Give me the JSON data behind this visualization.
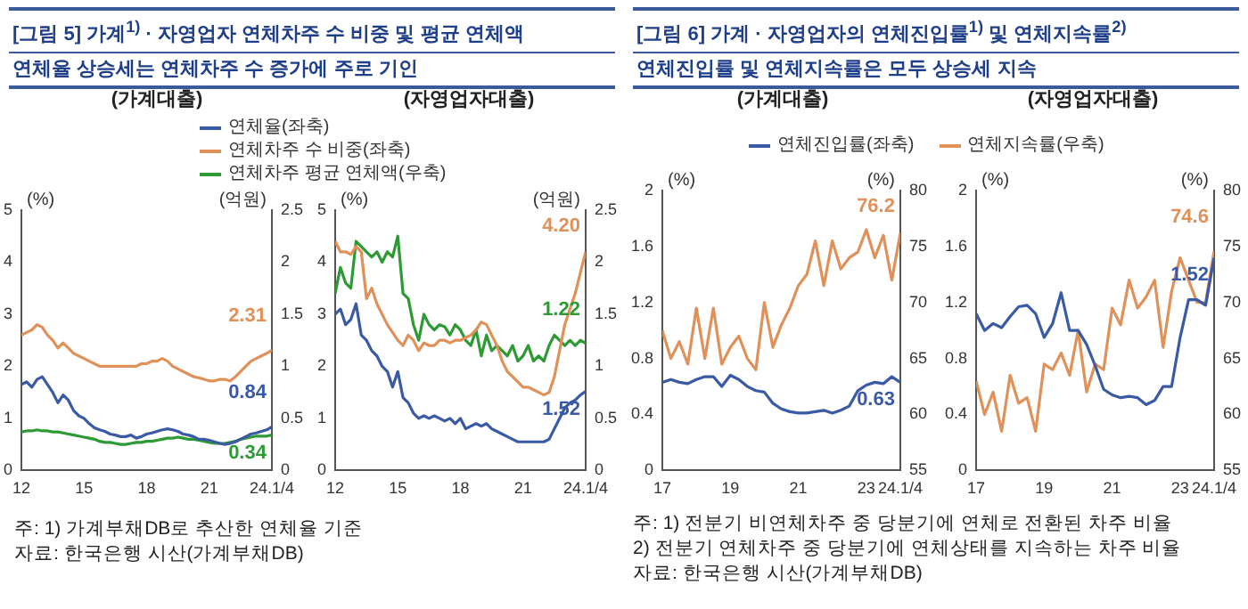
{
  "chart_data": [
    {
      "type": "line",
      "title": "[그림 5] 가계$^{1)}$ · 자영업자 연체차주 수 비중 및 평균 연체액",
      "subtitle": "연체율 상승세는 연체차주 수 증가에 주로 기인",
      "annotations": [
        "(가계대출)",
        "주: 1) 가계부채DB로 추산한 연체율 기준",
        "자료: 한국은행 시산(가계부채DB)"
      ],
      "ylabel": "(%)",
      "y2label": "(억원)",
      "legend": "top",
      "x": [
        2012,
        2012.25,
        2012.5,
        2012.75,
        2013,
        2013.25,
        2013.5,
        2013.75,
        2014,
        2014.25,
        2014.5,
        2014.75,
        2015,
        2015.25,
        2015.5,
        2015.75,
        2016,
        2016.25,
        2016.5,
        2016.75,
        2017,
        2017.25,
        2017.5,
        2017.75,
        2018,
        2018.25,
        2018.5,
        2018.75,
        2019,
        2019.25,
        2019.5,
        2019.75,
        2020,
        2020.25,
        2020.5,
        2020.75,
        2021,
        2021.25,
        2021.5,
        2021.75,
        2022,
        2022.25,
        2022.5,
        2022.75,
        2023,
        2023.25,
        2023.5,
        2023.75,
        2024
      ],
      "xlim": [
        2012,
        2024
      ],
      "xticks": [
        {
          "value": 2012,
          "label": "12"
        },
        {
          "value": 2015,
          "label": "15"
        },
        {
          "value": 2018,
          "label": "18"
        },
        {
          "value": 2021,
          "label": "21"
        },
        {
          "value": 2024,
          "label": "24.1/4"
        }
      ],
      "ylim": [
        0,
        5
      ],
      "yticks": [
        0,
        1,
        2,
        3,
        4,
        5
      ],
      "y2lim": [
        0,
        2.5
      ],
      "y2ticks": [
        0,
        0.5,
        1,
        1.5,
        2,
        2.5
      ],
      "series": [
        {
          "name": "연체율(좌축)",
          "color": "#3b5aa6",
          "values": [
            1.65,
            1.7,
            1.6,
            1.75,
            1.8,
            1.65,
            1.5,
            1.3,
            1.45,
            1.35,
            1.15,
            1.05,
            1.0,
            0.9,
            0.82,
            0.78,
            0.75,
            0.7,
            0.68,
            0.65,
            0.65,
            0.68,
            0.62,
            0.65,
            0.7,
            0.72,
            0.75,
            0.78,
            0.8,
            0.78,
            0.75,
            0.7,
            0.68,
            0.65,
            0.6,
            0.6,
            0.58,
            0.55,
            0.52,
            0.5,
            0.52,
            0.55,
            0.6,
            0.65,
            0.7,
            0.72,
            0.75,
            0.78,
            0.84
          ],
          "value_labels": [
            null,
            null,
            null,
            null,
            null,
            null,
            null,
            null,
            null,
            null,
            null,
            null,
            null,
            null,
            null,
            null,
            null,
            null,
            null,
            null,
            null,
            null,
            null,
            null,
            null,
            null,
            null,
            null,
            null,
            null,
            null,
            null,
            null,
            null,
            null,
            null,
            null,
            null,
            null,
            null,
            null,
            null,
            null,
            null,
            null,
            null,
            null,
            null,
            "0.84"
          ]
        },
        {
          "name": "연체차주 수 비중(좌축)",
          "color": "#e0915a",
          "values": [
            2.6,
            2.65,
            2.7,
            2.8,
            2.75,
            2.6,
            2.5,
            2.35,
            2.45,
            2.35,
            2.25,
            2.2,
            2.15,
            2.1,
            2.05,
            2.0,
            2.0,
            2.0,
            2.0,
            2.0,
            2.0,
            2.0,
            2.0,
            2.05,
            2.05,
            2.1,
            2.1,
            2.15,
            2.1,
            2.0,
            1.95,
            1.9,
            1.85,
            1.8,
            1.78,
            1.75,
            1.72,
            1.72,
            1.75,
            1.75,
            1.72,
            1.8,
            1.9,
            2.0,
            2.1,
            2.15,
            2.2,
            2.25,
            2.31
          ],
          "value_labels": [
            null,
            null,
            null,
            null,
            null,
            null,
            null,
            null,
            null,
            null,
            null,
            null,
            null,
            null,
            null,
            null,
            null,
            null,
            null,
            null,
            null,
            null,
            null,
            null,
            null,
            null,
            null,
            null,
            null,
            null,
            null,
            null,
            null,
            null,
            null,
            null,
            null,
            null,
            null,
            null,
            null,
            null,
            null,
            null,
            null,
            null,
            null,
            null,
            "2.31"
          ]
        },
        {
          "name": "연체차주 평균 연체액(우축)",
          "color": "#2e9a35",
          "axis": "y2",
          "values": [
            0.37,
            0.38,
            0.38,
            0.39,
            0.38,
            0.38,
            0.37,
            0.37,
            0.36,
            0.35,
            0.34,
            0.33,
            0.32,
            0.31,
            0.3,
            0.28,
            0.27,
            0.27,
            0.26,
            0.25,
            0.25,
            0.26,
            0.27,
            0.27,
            0.28,
            0.28,
            0.29,
            0.3,
            0.31,
            0.31,
            0.32,
            0.31,
            0.3,
            0.3,
            0.29,
            0.28,
            0.27,
            0.26,
            0.26,
            0.26,
            0.27,
            0.28,
            0.3,
            0.31,
            0.32,
            0.33,
            0.33,
            0.33,
            0.34
          ],
          "value_labels": [
            null,
            null,
            null,
            null,
            null,
            null,
            null,
            null,
            null,
            null,
            null,
            null,
            null,
            null,
            null,
            null,
            null,
            null,
            null,
            null,
            null,
            null,
            null,
            null,
            null,
            null,
            null,
            null,
            null,
            null,
            null,
            null,
            null,
            null,
            null,
            null,
            null,
            null,
            null,
            null,
            null,
            null,
            null,
            null,
            null,
            null,
            null,
            null,
            "0.34"
          ]
        }
      ]
    },
    {
      "type": "line",
      "annotations": [
        "(자영업자대출)"
      ],
      "ylabel": "(%)",
      "y2label": "(억원)",
      "x": [
        2012,
        2012.25,
        2012.5,
        2012.75,
        2013,
        2013.25,
        2013.5,
        2013.75,
        2014,
        2014.25,
        2014.5,
        2014.75,
        2015,
        2015.25,
        2015.5,
        2015.75,
        2016,
        2016.25,
        2016.5,
        2016.75,
        2017,
        2017.25,
        2017.5,
        2017.75,
        2018,
        2018.25,
        2018.5,
        2018.75,
        2019,
        2019.25,
        2019.5,
        2019.75,
        2020,
        2020.25,
        2020.5,
        2020.75,
        2021,
        2021.25,
        2021.5,
        2021.75,
        2022,
        2022.25,
        2022.5,
        2022.75,
        2023,
        2023.25,
        2023.5,
        2023.75,
        2024
      ],
      "xlim": [
        2012,
        2024
      ],
      "xticks": [
        {
          "value": 2012,
          "label": "12"
        },
        {
          "value": 2015,
          "label": "15"
        },
        {
          "value": 2018,
          "label": "18"
        },
        {
          "value": 2021,
          "label": "21"
        },
        {
          "value": 2024,
          "label": "24.1/4"
        }
      ],
      "ylim": [
        0,
        5
      ],
      "yticks": [
        0,
        1,
        2,
        3,
        4,
        5
      ],
      "y2lim": [
        0,
        2.5
      ],
      "y2ticks": [
        0,
        0.5,
        1,
        1.5,
        2,
        2.5
      ],
      "series": [
        {
          "color": "#3b5aa6",
          "values": [
            3.0,
            3.1,
            2.8,
            2.9,
            3.2,
            2.6,
            2.5,
            2.3,
            2.2,
            2.0,
            1.9,
            1.6,
            1.9,
            1.4,
            1.3,
            1.1,
            1.0,
            1.05,
            1.0,
            1.05,
            1.0,
            0.95,
            1.0,
            0.9,
            1.0,
            0.8,
            0.85,
            0.9,
            0.85,
            0.9,
            0.8,
            0.75,
            0.7,
            0.65,
            0.6,
            0.55,
            0.55,
            0.55,
            0.55,
            0.55,
            0.55,
            0.6,
            0.8,
            1.0,
            1.2,
            1.3,
            1.35,
            1.45,
            1.52
          ],
          "value_labels": [
            null,
            null,
            null,
            null,
            null,
            null,
            null,
            null,
            null,
            null,
            null,
            null,
            null,
            null,
            null,
            null,
            null,
            null,
            null,
            null,
            null,
            null,
            null,
            null,
            null,
            null,
            null,
            null,
            null,
            null,
            null,
            null,
            null,
            null,
            null,
            null,
            null,
            null,
            null,
            null,
            null,
            null,
            null,
            null,
            null,
            null,
            null,
            null,
            "1.52"
          ]
        },
        {
          "color": "#e0915a",
          "values": [
            4.4,
            4.2,
            4.2,
            4.15,
            4.3,
            4.2,
            3.3,
            3.5,
            3.2,
            3.0,
            2.8,
            2.65,
            2.5,
            2.4,
            2.6,
            2.5,
            2.3,
            2.45,
            2.4,
            2.4,
            2.5,
            2.5,
            2.45,
            2.5,
            2.5,
            2.55,
            2.6,
            2.7,
            2.85,
            2.8,
            2.6,
            2.4,
            2.1,
            1.9,
            1.8,
            1.7,
            1.6,
            1.6,
            1.55,
            1.5,
            1.45,
            1.5,
            1.8,
            2.3,
            2.8,
            3.1,
            3.4,
            3.8,
            4.2
          ],
          "value_labels": [
            null,
            null,
            null,
            null,
            null,
            null,
            null,
            null,
            null,
            null,
            null,
            null,
            null,
            null,
            null,
            null,
            null,
            null,
            null,
            null,
            null,
            null,
            null,
            null,
            null,
            null,
            null,
            null,
            null,
            null,
            null,
            null,
            null,
            null,
            null,
            null,
            null,
            null,
            null,
            null,
            null,
            null,
            null,
            null,
            null,
            null,
            null,
            null,
            "4.20"
          ]
        },
        {
          "color": "#2e9a35",
          "axis": "y2",
          "values": [
            1.7,
            1.95,
            1.8,
            1.75,
            2.2,
            2.15,
            2.1,
            2.05,
            2.1,
            2.0,
            2.1,
            2.05,
            2.25,
            1.7,
            1.65,
            1.4,
            1.25,
            1.5,
            1.4,
            1.35,
            1.4,
            1.38,
            1.3,
            1.4,
            1.35,
            1.25,
            1.2,
            1.35,
            1.1,
            1.3,
            1.15,
            1.2,
            1.15,
            1.1,
            1.2,
            1.05,
            1.1,
            1.2,
            1.05,
            1.1,
            1.05,
            1.2,
            1.3,
            1.25,
            1.2,
            1.25,
            1.2,
            1.25,
            1.22
          ],
          "value_labels": [
            null,
            null,
            null,
            null,
            null,
            null,
            null,
            null,
            null,
            null,
            null,
            null,
            null,
            null,
            null,
            null,
            null,
            null,
            null,
            null,
            null,
            null,
            null,
            null,
            null,
            null,
            null,
            null,
            null,
            null,
            null,
            null,
            null,
            null,
            null,
            null,
            null,
            null,
            null,
            null,
            null,
            null,
            null,
            null,
            null,
            null,
            null,
            null,
            "1.22"
          ]
        }
      ]
    },
    {
      "type": "line",
      "title": "[그림 6] 가계 · 자영업자의 연체진입률$^{1)}$ 및 연체지속률$^{2)}$",
      "subtitle": "연체진입률 및 연체지속률은 모두 상승세 지속",
      "annotations": [
        "(가계대출)",
        "주: 1) 전분기 비연체차주 중 당분기에 연체로 전환된 차주 비율",
        "2) 전분기 연체차주 중 당분기에 연체상태를 지속하는 차주 비율",
        "자료: 한국은행 시산(가계부채DB)"
      ],
      "ylabel": "(%)",
      "y2label": "(%)",
      "legend": "top",
      "x": [
        2017,
        2017.25,
        2017.5,
        2017.75,
        2018,
        2018.25,
        2018.5,
        2018.75,
        2019,
        2019.25,
        2019.5,
        2019.75,
        2020,
        2020.25,
        2020.5,
        2020.75,
        2021,
        2021.25,
        2021.5,
        2021.75,
        2022,
        2022.25,
        2022.5,
        2022.75,
        2023,
        2023.25,
        2023.5,
        2023.75,
        2024
      ],
      "xlim": [
        2017,
        2024
      ],
      "xticks": [
        {
          "value": 2017,
          "label": "17"
        },
        {
          "value": 2019,
          "label": "19"
        },
        {
          "value": 2021,
          "label": "21"
        },
        {
          "value": 2023,
          "label": "23"
        },
        {
          "value": 2024,
          "label": "24.1/4"
        }
      ],
      "ylim": [
        0,
        2
      ],
      "yticks": [
        0,
        0.4,
        0.8,
        1.2,
        1.6,
        2
      ],
      "y2lim": [
        55,
        80
      ],
      "y2ticks": [
        55,
        60,
        65,
        70,
        75,
        80
      ],
      "series": [
        {
          "name": "연체진입률(좌축)",
          "color": "#3b5aa6",
          "values": [
            0.63,
            0.65,
            0.63,
            0.62,
            0.65,
            0.67,
            0.67,
            0.6,
            0.68,
            0.65,
            0.6,
            0.57,
            0.56,
            0.48,
            0.44,
            0.42,
            0.41,
            0.41,
            0.42,
            0.43,
            0.41,
            0.43,
            0.46,
            0.57,
            0.61,
            0.63,
            0.62,
            0.67,
            0.63
          ],
          "value_labels": [
            null,
            null,
            null,
            null,
            null,
            null,
            null,
            null,
            null,
            null,
            null,
            null,
            null,
            null,
            null,
            null,
            null,
            null,
            null,
            null,
            null,
            null,
            null,
            null,
            null,
            null,
            null,
            null,
            "0.63"
          ]
        },
        {
          "name": "연체지속률(우축)",
          "color": "#e0915a",
          "axis": "y2",
          "values": [
            67.5,
            65,
            66.5,
            64.5,
            69.5,
            65,
            69.5,
            64.5,
            66,
            67,
            65,
            64,
            70,
            66,
            68,
            69.5,
            71.5,
            72.5,
            75.5,
            71.5,
            75.5,
            73,
            74,
            74.5,
            76.5,
            74,
            76,
            72,
            76.2
          ],
          "value_labels": [
            null,
            null,
            null,
            null,
            null,
            null,
            null,
            null,
            null,
            null,
            null,
            null,
            null,
            null,
            null,
            null,
            null,
            null,
            null,
            null,
            null,
            null,
            null,
            null,
            null,
            null,
            null,
            null,
            "76.2"
          ]
        }
      ]
    },
    {
      "type": "line",
      "annotations": [
        "(자영업자대출)"
      ],
      "ylabel": "(%)",
      "y2label": "(%)",
      "x": [
        2017,
        2017.25,
        2017.5,
        2017.75,
        2018,
        2018.25,
        2018.5,
        2018.75,
        2019,
        2019.25,
        2019.5,
        2019.75,
        2020,
        2020.25,
        2020.5,
        2020.75,
        2021,
        2021.25,
        2021.5,
        2021.75,
        2022,
        2022.25,
        2022.5,
        2022.75,
        2023,
        2023.25,
        2023.5,
        2023.75,
        2024
      ],
      "xlim": [
        2017,
        2024
      ],
      "xticks": [
        {
          "value": 2017,
          "label": "17"
        },
        {
          "value": 2019,
          "label": "19"
        },
        {
          "value": 2021,
          "label": "21"
        },
        {
          "value": 2023,
          "label": "23"
        },
        {
          "value": 2024,
          "label": "24.1/4"
        }
      ],
      "ylim": [
        0,
        2
      ],
      "yticks": [
        0,
        0.4,
        0.8,
        1.2,
        1.6,
        2
      ],
      "y2lim": [
        55,
        80
      ],
      "y2ticks": [
        55,
        60,
        65,
        70,
        75,
        80
      ],
      "series": [
        {
          "color": "#3b5aa6",
          "values": [
            1.12,
            1.0,
            1.05,
            1.02,
            1.1,
            1.17,
            1.18,
            1.12,
            0.95,
            1.05,
            1.27,
            1.0,
            1.0,
            0.9,
            0.75,
            0.58,
            0.54,
            0.52,
            0.53,
            0.52,
            0.47,
            0.5,
            0.6,
            0.6,
            0.95,
            1.22,
            1.22,
            1.18,
            1.52
          ],
          "value_labels": [
            null,
            null,
            null,
            null,
            null,
            null,
            null,
            null,
            null,
            null,
            null,
            null,
            null,
            null,
            null,
            null,
            null,
            null,
            null,
            null,
            null,
            null,
            null,
            null,
            null,
            null,
            null,
            null,
            "1.52"
          ]
        },
        {
          "color": "#e0915a",
          "axis": "y2",
          "values": [
            63,
            60,
            62,
            58.5,
            63.5,
            61,
            61.5,
            58.5,
            64.5,
            64,
            65.5,
            63.5,
            67.5,
            62,
            64.5,
            64,
            69.5,
            68,
            72,
            69.5,
            70.5,
            72,
            66,
            71,
            74,
            72,
            70,
            70,
            74.6
          ],
          "value_labels": [
            null,
            null,
            null,
            null,
            null,
            null,
            null,
            null,
            null,
            null,
            null,
            null,
            null,
            null,
            null,
            null,
            null,
            null,
            null,
            null,
            null,
            null,
            null,
            null,
            null,
            null,
            null,
            null,
            "74.6"
          ]
        }
      ]
    }
  ]
}
